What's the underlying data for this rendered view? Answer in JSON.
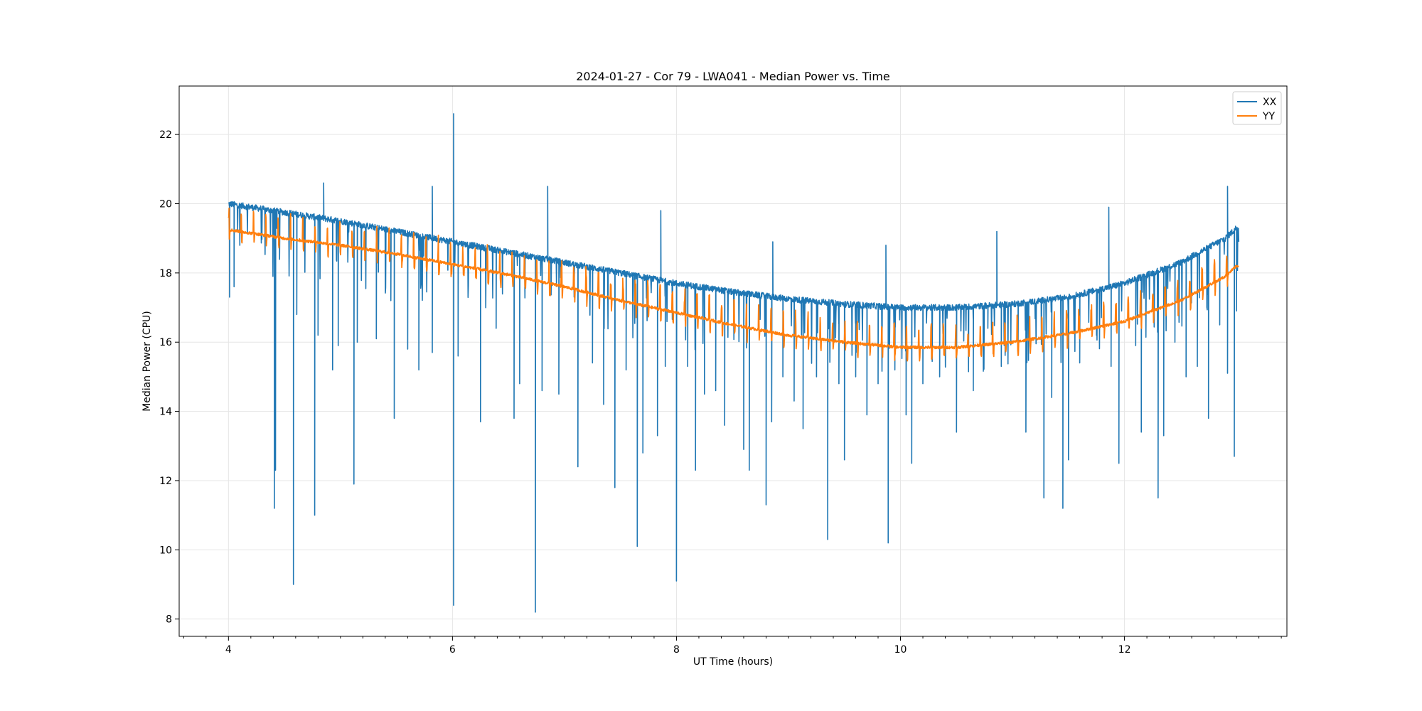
{
  "chart_data": {
    "type": "line",
    "title": "2024-01-27 - Cor 79 - LWA041 - Median Power vs. Time",
    "xlabel": "UT Time (hours)",
    "ylabel": "Median Power (CPU)",
    "xlim": [
      3.56,
      13.45
    ],
    "ylim": [
      7.5,
      23.4
    ],
    "xticks": [
      4,
      6,
      8,
      10,
      12
    ],
    "yticks": [
      8,
      10,
      12,
      14,
      16,
      18,
      20,
      22
    ],
    "xtick_labels": [
      "4",
      "6",
      "8",
      "10",
      "12"
    ],
    "ytick_labels": [
      "8",
      "10",
      "12",
      "14",
      "16",
      "18",
      "20",
      "22"
    ],
    "grid": true,
    "legend": {
      "placement": "top-right",
      "entries": [
        "XX",
        "YY"
      ]
    },
    "series": [
      {
        "name": "XX",
        "color": "#1f77b4",
        "baseline": {
          "x": [
            4.0,
            4.5,
            5.0,
            5.5,
            6.0,
            6.5,
            7.0,
            7.5,
            8.0,
            8.5,
            9.0,
            9.5,
            10.0,
            10.5,
            11.0,
            11.5,
            12.0,
            12.5,
            12.9,
            13.0
          ],
          "y": [
            20.0,
            19.75,
            19.5,
            19.2,
            18.9,
            18.6,
            18.3,
            18.0,
            17.7,
            17.45,
            17.25,
            17.1,
            17.0,
            17.0,
            17.1,
            17.3,
            17.7,
            18.3,
            19.0,
            19.3
          ]
        },
        "dips": [
          [
            4.01,
            17.3
          ],
          [
            4.05,
            17.6
          ],
          [
            4.41,
            11.2
          ],
          [
            4.42,
            12.3
          ],
          [
            4.58,
            9.0
          ],
          [
            4.61,
            16.8
          ],
          [
            4.77,
            11.0
          ],
          [
            4.8,
            16.2
          ],
          [
            4.93,
            15.2
          ],
          [
            4.98,
            15.9
          ],
          [
            5.12,
            11.9
          ],
          [
            5.15,
            16.0
          ],
          [
            5.32,
            16.1
          ],
          [
            5.45,
            17.2
          ],
          [
            5.48,
            13.8
          ],
          [
            5.6,
            15.8
          ],
          [
            5.7,
            15.2
          ],
          [
            5.82,
            15.7
          ],
          [
            6.01,
            8.4
          ],
          [
            6.05,
            15.6
          ],
          [
            6.25,
            13.7
          ],
          [
            6.39,
            16.4
          ],
          [
            6.55,
            13.8
          ],
          [
            6.6,
            14.8
          ],
          [
            6.74,
            8.2
          ],
          [
            6.8,
            14.6
          ],
          [
            6.95,
            14.5
          ],
          [
            7.12,
            12.4
          ],
          [
            7.25,
            15.4
          ],
          [
            7.35,
            14.2
          ],
          [
            7.45,
            11.8
          ],
          [
            7.55,
            15.2
          ],
          [
            7.65,
            10.1
          ],
          [
            7.7,
            12.8
          ],
          [
            7.83,
            13.3
          ],
          [
            7.9,
            15.3
          ],
          [
            8.0,
            9.1
          ],
          [
            8.1,
            15.3
          ],
          [
            8.17,
            12.3
          ],
          [
            8.25,
            14.5
          ],
          [
            8.35,
            14.6
          ],
          [
            8.43,
            13.6
          ],
          [
            8.6,
            12.9
          ],
          [
            8.65,
            12.3
          ],
          [
            8.8,
            11.3
          ],
          [
            8.85,
            13.7
          ],
          [
            8.95,
            15.0
          ],
          [
            9.05,
            14.3
          ],
          [
            9.13,
            13.5
          ],
          [
            9.25,
            15.0
          ],
          [
            9.35,
            10.3
          ],
          [
            9.45,
            14.8
          ],
          [
            9.5,
            12.6
          ],
          [
            9.6,
            15.0
          ],
          [
            9.7,
            13.9
          ],
          [
            9.8,
            14.8
          ],
          [
            9.89,
            10.2
          ],
          [
            9.95,
            15.2
          ],
          [
            10.05,
            13.9
          ],
          [
            10.1,
            12.5
          ],
          [
            10.2,
            14.8
          ],
          [
            10.35,
            15.0
          ],
          [
            10.5,
            13.4
          ],
          [
            10.65,
            14.6
          ],
          [
            10.78,
            16.4
          ],
          [
            10.9,
            15.3
          ],
          [
            11.05,
            15.8
          ],
          [
            11.12,
            13.4
          ],
          [
            11.28,
            11.5
          ],
          [
            11.35,
            14.4
          ],
          [
            11.45,
            11.2
          ],
          [
            11.5,
            12.6
          ],
          [
            11.6,
            15.4
          ],
          [
            11.75,
            16.2
          ],
          [
            11.88,
            15.3
          ],
          [
            11.95,
            12.5
          ],
          [
            12.1,
            15.9
          ],
          [
            12.15,
            13.4
          ],
          [
            12.3,
            11.5
          ],
          [
            12.35,
            13.3
          ],
          [
            12.45,
            16.0
          ],
          [
            12.55,
            15.0
          ],
          [
            12.65,
            15.3
          ],
          [
            12.75,
            13.8
          ],
          [
            12.85,
            16.5
          ],
          [
            12.92,
            15.1
          ],
          [
            12.98,
            12.7
          ],
          [
            13.0,
            16.9
          ]
        ],
        "spikes": [
          [
            4.85,
            20.6
          ],
          [
            5.82,
            20.5
          ],
          [
            6.01,
            22.6
          ],
          [
            6.85,
            20.5
          ],
          [
            7.86,
            19.8
          ],
          [
            8.86,
            18.9
          ],
          [
            9.87,
            18.8
          ],
          [
            10.86,
            19.2
          ],
          [
            11.86,
            19.9
          ],
          [
            12.92,
            20.5
          ]
        ]
      },
      {
        "name": "YY",
        "color": "#ff7f0e",
        "baseline": {
          "x": [
            4.0,
            4.5,
            5.0,
            5.5,
            6.0,
            6.5,
            7.0,
            7.5,
            8.0,
            8.5,
            9.0,
            9.5,
            10.0,
            10.5,
            11.0,
            11.5,
            12.0,
            12.5,
            12.9,
            13.0
          ],
          "y": [
            19.25,
            19.0,
            18.8,
            18.55,
            18.25,
            17.95,
            17.6,
            17.2,
            16.85,
            16.5,
            16.2,
            16.0,
            15.85,
            15.85,
            16.0,
            16.25,
            16.6,
            17.2,
            17.9,
            18.2
          ]
        }
      }
    ]
  }
}
